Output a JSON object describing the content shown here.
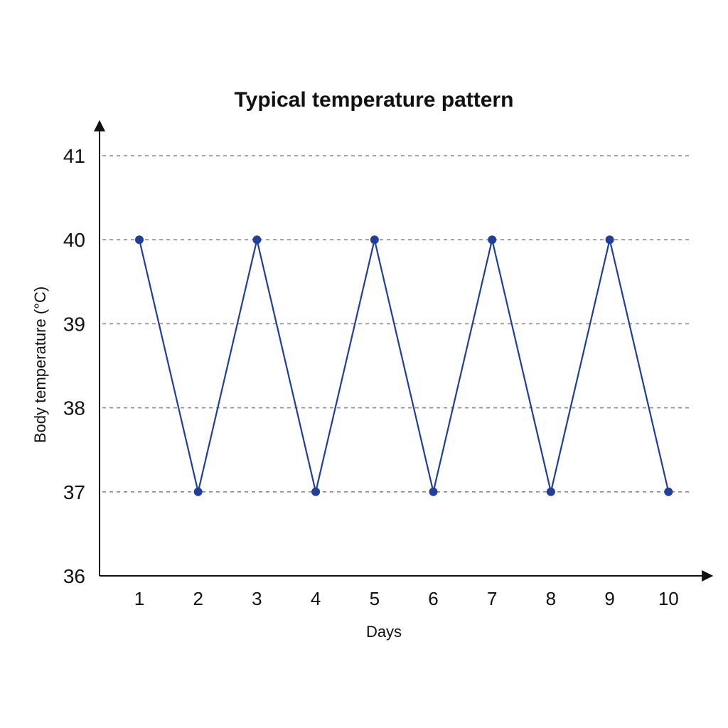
{
  "chart_data": {
    "type": "line",
    "title": "Typical temperature pattern",
    "xlabel": "Days",
    "ylabel": "Body temperature (°C)",
    "x": [
      1,
      2,
      3,
      4,
      5,
      6,
      7,
      8,
      9,
      10
    ],
    "xticks": [
      "1",
      "2",
      "3",
      "4",
      "5",
      "6",
      "7",
      "8",
      "9",
      "10"
    ],
    "yticks": [
      "36",
      "37",
      "38",
      "39",
      "40",
      "41"
    ],
    "ylim": [
      36,
      41
    ],
    "grid": true,
    "series": [
      {
        "values": [
          40,
          37,
          40,
          37,
          40,
          37,
          40,
          37,
          40,
          37
        ],
        "color": "#1f3f9a"
      }
    ]
  }
}
